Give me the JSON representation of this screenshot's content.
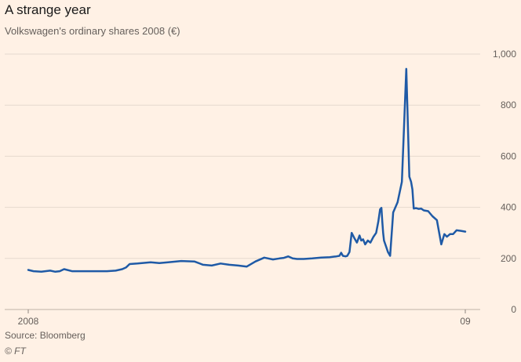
{
  "header": {
    "title": "A strange year",
    "subtitle": "Volkswagen's ordinary shares 2008 (€)"
  },
  "footer": {
    "source": "Source: Bloomberg",
    "copyright": "© FT"
  },
  "colors": {
    "background": "#fff1e5",
    "series": "#1f5aa6",
    "grid": "#e6d9ce",
    "text": "#66605c"
  },
  "chart_data": {
    "type": "line",
    "title": "A strange year",
    "subtitle": "Volkswagen's ordinary shares 2008 (€)",
    "xlabel": "",
    "ylabel": "",
    "ylim": [
      0,
      1000
    ],
    "yticks": [
      0,
      200,
      400,
      600,
      800,
      1000
    ],
    "ytick_labels": [
      "0",
      "200",
      "400",
      "600",
      "800",
      "1,000"
    ],
    "xlim": [
      0,
      1
    ],
    "xticks": [
      0,
      1
    ],
    "xtick_labels": [
      "2008",
      "09"
    ],
    "grid": true,
    "y_axis_side": "right",
    "series": [
      {
        "x": [
          0.0,
          0.012,
          0.03,
          0.05,
          0.062,
          0.072,
          0.082,
          0.1,
          0.12,
          0.15,
          0.18,
          0.2,
          0.215,
          0.224,
          0.232,
          0.25,
          0.28,
          0.3,
          0.32,
          0.35,
          0.38,
          0.4,
          0.42,
          0.44,
          0.46,
          0.48,
          0.5,
          0.52,
          0.54,
          0.56,
          0.575,
          0.585,
          0.595,
          0.605,
          0.615,
          0.63,
          0.65,
          0.67,
          0.69,
          0.7,
          0.705,
          0.712,
          0.716,
          0.72,
          0.726,
          0.73,
          0.735,
          0.74,
          0.746,
          0.752,
          0.758,
          0.762,
          0.766,
          0.771,
          0.777,
          0.783,
          0.79,
          0.796,
          0.801,
          0.805,
          0.808,
          0.81,
          0.812,
          0.814,
          0.819,
          0.823,
          0.828,
          0.835,
          0.845,
          0.855,
          0.865,
          0.872,
          0.876,
          0.879,
          0.882,
          0.887,
          0.893,
          0.899,
          0.905,
          0.915,
          0.925,
          0.935,
          0.945,
          0.952,
          0.958,
          0.965,
          0.972,
          0.98,
          0.99,
          1.0
        ],
        "values": [
          155,
          150,
          148,
          152,
          148,
          150,
          158,
          150,
          150,
          150,
          150,
          152,
          158,
          165,
          178,
          180,
          185,
          182,
          185,
          190,
          188,
          175,
          172,
          180,
          175,
          172,
          168,
          188,
          203,
          196,
          200,
          202,
          208,
          200,
          198,
          198,
          200,
          203,
          205,
          207,
          208,
          210,
          222,
          210,
          208,
          210,
          225,
          300,
          280,
          262,
          290,
          270,
          275,
          255,
          270,
          262,
          285,
          300,
          345,
          392,
          398,
          345,
          300,
          270,
          245,
          225,
          210,
          380,
          420,
          500,
          942,
          520,
          500,
          470,
          395,
          397,
          394,
          395,
          388,
          385,
          365,
          350,
          255,
          295,
          285,
          295,
          295,
          310,
          308,
          305
        ]
      }
    ]
  }
}
